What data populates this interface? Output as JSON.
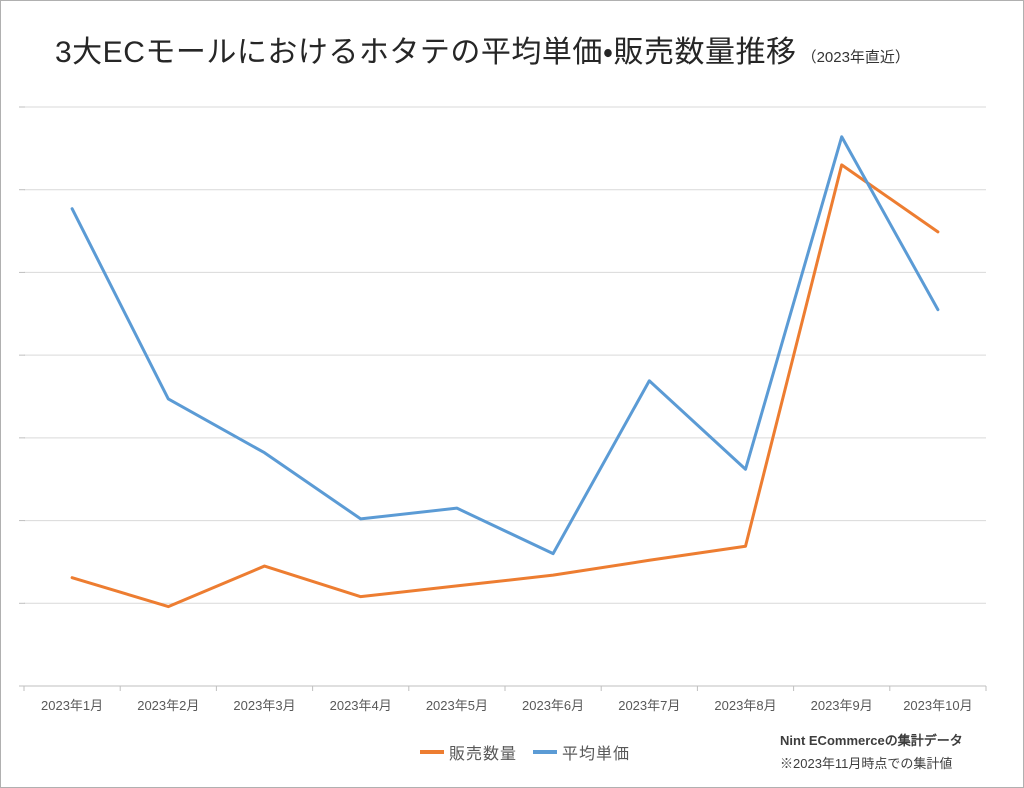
{
  "header": {
    "title": "3大ECモールにおけるホタテの平均単価・販売数量推移",
    "title_note": "（2023年直近）"
  },
  "footer": {
    "line1": "Nint ECommerceの集計データ",
    "line2": "※2023年11月時点での集計値"
  },
  "colors": {
    "sales_volume": "#ED7D31",
    "average_price": "#5B9BD5",
    "gridline": "#D9D9D9",
    "axis_line": "#BFBFBF",
    "tick": "#BFBFBF",
    "axis_label_text": "#595959",
    "title_text": "#262626"
  },
  "chart_data": {
    "type": "line",
    "title": "3大ECモールにおけるホタテの平均単価・販売数量推移（2023年直近）",
    "categories": [
      "2023年1月",
      "2023年2月",
      "2023年3月",
      "2023年4月",
      "2023年5月",
      "2023年6月",
      "2023年7月",
      "2023年8月",
      "2023年9月",
      "2023年10月"
    ],
    "series": [
      {
        "key": "sales-volume",
        "name": "販売数量",
        "color": "#ED7D31",
        "values": [
          1.31,
          0.96,
          1.45,
          1.08,
          1.21,
          1.34,
          1.52,
          1.69,
          6.3,
          5.49
        ]
      },
      {
        "key": "average-price",
        "name": "平均単価",
        "color": "#5B9BD5",
        "values": [
          5.77,
          3.47,
          2.82,
          2.02,
          2.15,
          1.6,
          3.69,
          2.62,
          6.64,
          4.55
        ]
      }
    ],
    "xlabel": "",
    "ylabel": "",
    "ylim": [
      0,
      7
    ],
    "gridline_step": 1,
    "grid": "horizontal",
    "y_axis_labels_visible": false,
    "y_unit_note": "vertical axis unlabeled in source; values estimated in gridline units (1 unit = 1 gridline interval)",
    "legend_position": "bottom-center"
  }
}
